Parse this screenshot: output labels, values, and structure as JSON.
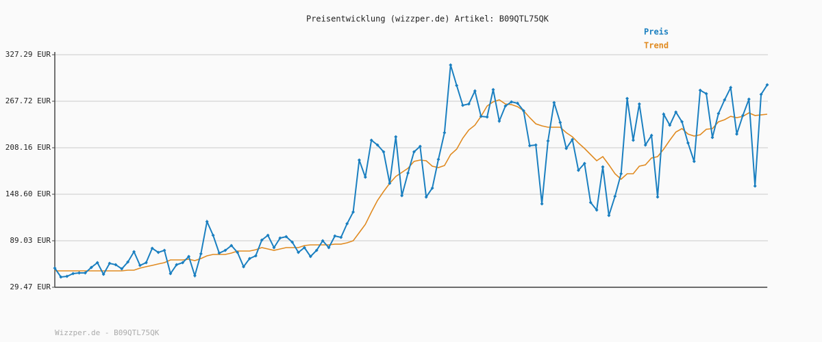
{
  "chart_data": {
    "type": "line",
    "title": "Preisentwicklung (wizzper.de) Artikel: B09QTL75QK",
    "footer": "Wizzper.de - B09QTL75QK",
    "categories": [
      null,
      null,
      null,
      null,
      null,
      null,
      null,
      null,
      null,
      null,
      null,
      null,
      null,
      null,
      null,
      null,
      null,
      null,
      null,
      null,
      null,
      null,
      null,
      null,
      null,
      null,
      null,
      null,
      null,
      null,
      null,
      null,
      null,
      null,
      null,
      null,
      null,
      null,
      null,
      null,
      null,
      null,
      null,
      null,
      null,
      null,
      null,
      null,
      null,
      null,
      null,
      null,
      null,
      null,
      null,
      null,
      null,
      null,
      null,
      null,
      null,
      null,
      null,
      null,
      null,
      null,
      null,
      null,
      null,
      null,
      null,
      null,
      null,
      null,
      null,
      null,
      null,
      null,
      null,
      null,
      null,
      null,
      null,
      null,
      null,
      null,
      null,
      null,
      null,
      null,
      null,
      null,
      null,
      null,
      null,
      null,
      null,
      null,
      null,
      null,
      null,
      null,
      null,
      null,
      null,
      null,
      null,
      null,
      null,
      null,
      null,
      null,
      null,
      null,
      null,
      null,
      null,
      null
    ],
    "series": [
      {
        "name": "Preis",
        "color": "#1a7fc0",
        "values": [
          54.0,
          42.6,
          43.5,
          47.0,
          47.9,
          47.9,
          54.9,
          61.0,
          46.1,
          60.1,
          58.4,
          53.1,
          61.9,
          75.0,
          57.5,
          61.0,
          79.4,
          74.1,
          76.8,
          47.0,
          58.4,
          61.0,
          68.9,
          44.4,
          72.4,
          113.6,
          96.0,
          73.3,
          76.8,
          82.9,
          74.1,
          55.8,
          66.3,
          69.8,
          89.9,
          96.0,
          80.3,
          92.5,
          94.3,
          87.3,
          74.1,
          80.3,
          68.9,
          76.8,
          89.0,
          80.3,
          95.2,
          93.4,
          110.9,
          125.8,
          192.4,
          170.5,
          217.8,
          211.7,
          202.9,
          162.6,
          222.2,
          146.8,
          175.8,
          202.9,
          209.9,
          145.1,
          156.5,
          193.3,
          227.4,
          314.1,
          287.9,
          262.5,
          264.2,
          280.9,
          248.4,
          247.6,
          282.6,
          242.3,
          261.6,
          266.9,
          265.1,
          255.5,
          210.8,
          211.7,
          136.3,
          216.9,
          266.0,
          240.6,
          207.3,
          218.7,
          179.3,
          188.0,
          138.1,
          128.4,
          183.6,
          121.4,
          146.0,
          174.9,
          271.2,
          217.8,
          264.2,
          211.7,
          223.9,
          145.1,
          251.1,
          237.1,
          253.8,
          241.4,
          214.3,
          190.6,
          281.7,
          277.4,
          221.3,
          252.0,
          269.5,
          285.2,
          225.7,
          249.4,
          270.3,
          159.1,
          276.5,
          288.7
        ]
      },
      {
        "name": "Trend",
        "color": "#e08a20",
        "values": [
          50.5,
          50.5,
          50.5,
          50.5,
          50.5,
          50.5,
          50.5,
          50.5,
          50.5,
          50.5,
          50.5,
          50.5,
          51.4,
          51.4,
          54.0,
          55.8,
          57.5,
          59.3,
          61.0,
          64.5,
          64.5,
          64.5,
          65.4,
          63.6,
          66.3,
          69.8,
          71.5,
          71.5,
          71.5,
          73.3,
          75.9,
          75.9,
          75.9,
          77.6,
          80.3,
          78.5,
          76.8,
          78.5,
          80.3,
          80.3,
          80.3,
          82.9,
          83.8,
          83.8,
          83.8,
          83.8,
          84.7,
          84.7,
          86.4,
          89.0,
          99.5,
          110.0,
          125.8,
          140.7,
          152.1,
          162.6,
          171.4,
          176.6,
          181.9,
          190.6,
          192.4,
          191.5,
          184.5,
          182.8,
          185.4,
          199.4,
          206.4,
          220.4,
          230.9,
          237.1,
          248.4,
          261.6,
          266.9,
          269.5,
          264.2,
          263.4,
          260.7,
          255.5,
          246.7,
          238.8,
          236.2,
          234.4,
          234.4,
          234.4,
          227.4,
          222.2,
          214.3,
          207.3,
          199.4,
          191.5,
          196.8,
          186.3,
          174.9,
          167.9,
          174.9,
          174.9,
          184.5,
          186.3,
          195.0,
          196.8,
          206.4,
          217.8,
          228.3,
          232.7,
          225.7,
          223.1,
          224.8,
          231.8,
          232.7,
          241.4,
          244.1,
          248.4,
          246.7,
          248.4,
          252.8,
          249.4,
          250.3,
          251.1
        ]
      }
    ],
    "ylim": [
      29.47,
      327.29
    ],
    "yticks": [
      {
        "value": 29.47,
        "label": "29.47 EUR"
      },
      {
        "value": 89.03,
        "label": "89.03 EUR"
      },
      {
        "value": 148.6,
        "label": "148.60 EUR"
      },
      {
        "value": 208.16,
        "label": "208.16 EUR"
      },
      {
        "value": 267.72,
        "label": "267.72 EUR"
      },
      {
        "value": 327.29,
        "label": "327.29 EUR"
      }
    ],
    "grid": true
  }
}
